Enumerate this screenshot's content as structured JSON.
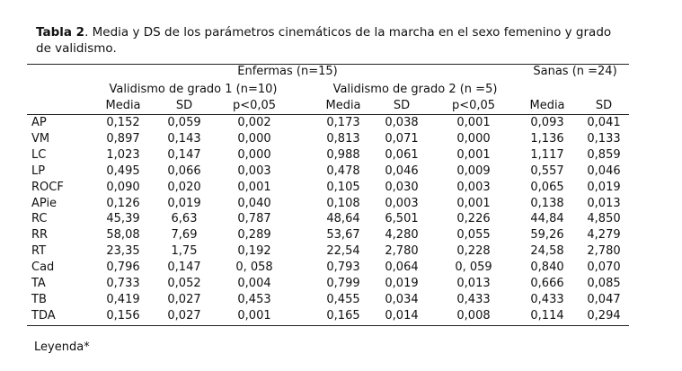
{
  "caption": {
    "label": "Tabla 2",
    "text": ". Media y DS de los parámetros cinemáticos de la marcha en el sexo femenino y grado de validismo."
  },
  "table": {
    "group_headers": [
      "Enfermas (n=15)",
      "Sanas (n =24)"
    ],
    "subgroup_headers": [
      "Validismo de grado 1 (n=10)",
      "Validismo de grado 2 (n =5)"
    ],
    "column_headers": [
      "Media",
      "SD",
      "p<0,05",
      "Media",
      "SD",
      "p<0,05",
      "Media",
      "SD"
    ],
    "rows": [
      [
        "AP",
        "0,152",
        "0,059",
        "0,002",
        "0,173",
        "0,038",
        "0,001",
        "0,093",
        "0,041"
      ],
      [
        "VM",
        "0,897",
        "0,143",
        "0,000",
        "0,813",
        "0,071",
        "0,000",
        "1,136",
        "0,133"
      ],
      [
        "LC",
        "1,023",
        "0,147",
        "0,000",
        "0,988",
        "0,061",
        "0,001",
        "1,117",
        "0,859"
      ],
      [
        "LP",
        "0,495",
        "0,066",
        "0,003",
        "0,478",
        "0,046",
        "0,009",
        "0,557",
        "0,046"
      ],
      [
        "ROCF",
        "0,090",
        "0,020",
        "0,001",
        "0,105",
        "0,030",
        "0,003",
        "0,065",
        "0,019"
      ],
      [
        "APie",
        "0,126",
        "0,019",
        "0,040",
        "0,108",
        "0,003",
        "0,001",
        "0,138",
        "0,013"
      ],
      [
        "RC",
        "45,39",
        "6,63",
        "0,787",
        "48,64",
        "6,501",
        "0,226",
        "44,84",
        "4,850"
      ],
      [
        "RR",
        "58,08",
        "7,69",
        "0,289",
        "53,67",
        "4,280",
        "0,055",
        "59,26",
        "4,279"
      ],
      [
        "RT",
        "23,35",
        "1,75",
        "0,192",
        "22,54",
        "2,780",
        "0,228",
        "24,58",
        "2,780"
      ],
      [
        "Cad",
        "0,796",
        "0,147",
        "0, 058",
        "0,793",
        "0,064",
        "0, 059",
        "0,840",
        "0,070"
      ],
      [
        "TA",
        "0,733",
        "0,052",
        "0,004",
        "0,799",
        "0,019",
        "0,013",
        "0,666",
        "0,085"
      ],
      [
        "TB",
        "0,419",
        "0,027",
        "0,453",
        "0,455",
        "0,034",
        "0,433",
        "0,433",
        "0,047"
      ],
      [
        "TDA",
        "0,156",
        "0,027",
        "0,001",
        "0,165",
        "0,014",
        "0,008",
        "0,114",
        "0,294"
      ]
    ]
  },
  "footer": "Leyenda*"
}
